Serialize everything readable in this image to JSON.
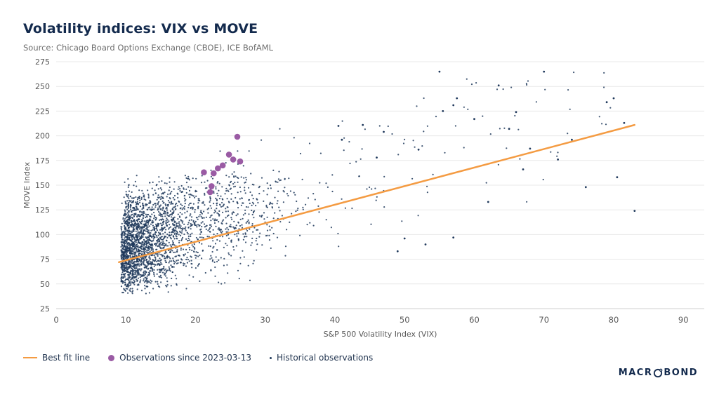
{
  "title": "Volatility indices: VIX vs MOVE",
  "subtitle": "Source: Chicago Board Options Exchange (CBOE), ICE BofAML",
  "colors": {
    "navy": "#20395c",
    "orange": "#f49b42",
    "purple": "#9a5ba4",
    "grid": "#e8e8e8",
    "axis_line": "#cfcfcf",
    "tick_text": "#595959",
    "title_text": "#132a4d",
    "subtitle_text": "#6e6e6e"
  },
  "legend": [
    {
      "label": "Best fit line",
      "type": "line"
    },
    {
      "label": "Observations since 2023-03-13",
      "type": "dot-large"
    },
    {
      "label": "Historical observations",
      "type": "dot-small"
    }
  ],
  "logo": {
    "text_left": "MACR",
    "text_right": "BOND"
  },
  "chart_data": {
    "type": "scatter",
    "title": "Volatility indices: VIX vs MOVE",
    "xlabel": "S&P 500 Volatility Index (VIX)",
    "ylabel": "MOVE Index",
    "xlim": [
      0,
      93
    ],
    "ylim": [
      25,
      275
    ],
    "x_ticks": [
      0,
      10,
      20,
      30,
      40,
      50,
      60,
      70,
      80,
      90
    ],
    "y_ticks": [
      25,
      50,
      75,
      100,
      125,
      150,
      175,
      200,
      225,
      250,
      275
    ],
    "grid": "horizontal",
    "legend_position": "bottom-left",
    "best_fit_line": {
      "name": "Best fit line",
      "x": [
        9,
        83
      ],
      "y": [
        72,
        211
      ]
    },
    "recent_observations": {
      "name": "Observations since 2023-03-13",
      "points": [
        [
          21.2,
          163
        ],
        [
          22.1,
          143
        ],
        [
          22.3,
          149
        ],
        [
          22.6,
          162
        ],
        [
          23.2,
          167
        ],
        [
          23.9,
          170
        ],
        [
          24.8,
          181
        ],
        [
          25.4,
          176
        ],
        [
          26.0,
          199
        ],
        [
          26.4,
          174
        ]
      ]
    },
    "historical_observations": {
      "name": "Historical observations",
      "seed": 42,
      "density_model": {
        "clusters": [
          {
            "count": 1700,
            "x": {
              "type": "exp",
              "min": 9.3,
              "scale": 4.8,
              "max": 33
            },
            "y": {
              "intercept": 58,
              "slope": 1.9,
              "sigma": 20,
              "min": 40,
              "max": 150
            }
          },
          {
            "count": 700,
            "x": {
              "type": "exp",
              "min": 9.8,
              "scale": 6.5,
              "max": 34
            },
            "y": {
              "intercept": 95,
              "slope": 2.0,
              "sigma": 18,
              "min": 60,
              "max": 160
            }
          },
          {
            "count": 260,
            "x": {
              "type": "exp",
              "min": 22,
              "scale": 8.0,
              "max": 52
            },
            "y": {
              "intercept": 55,
              "slope": 2.4,
              "sigma": 30,
              "min": 45,
              "max": 215
            }
          },
          {
            "count": 60,
            "x": {
              "type": "uniform",
              "min": 40,
              "max": 80
            },
            "y": {
              "intercept": 40,
              "slope": 2.6,
              "sigma": 38,
              "min": 80,
              "max": 265
            }
          }
        ]
      },
      "outlier_points": [
        [
          40.5,
          210
        ],
        [
          44,
          211
        ],
        [
          47,
          204
        ],
        [
          41,
          196
        ],
        [
          46,
          178
        ],
        [
          55,
          265
        ],
        [
          70,
          265
        ],
        [
          63.5,
          251
        ],
        [
          57.5,
          238
        ],
        [
          80,
          238
        ],
        [
          79,
          234
        ],
        [
          57,
          231
        ],
        [
          55.5,
          225
        ],
        [
          66,
          224
        ],
        [
          60,
          217
        ],
        [
          81.5,
          213
        ],
        [
          65,
          207
        ],
        [
          74,
          196
        ],
        [
          68,
          187
        ],
        [
          52,
          186
        ],
        [
          76,
          148
        ],
        [
          83,
          124
        ],
        [
          80.5,
          158
        ],
        [
          50,
          96
        ],
        [
          53,
          90
        ],
        [
          57,
          97
        ],
        [
          49,
          83
        ],
        [
          62,
          133
        ],
        [
          67,
          166
        ],
        [
          72,
          176
        ]
      ]
    }
  }
}
